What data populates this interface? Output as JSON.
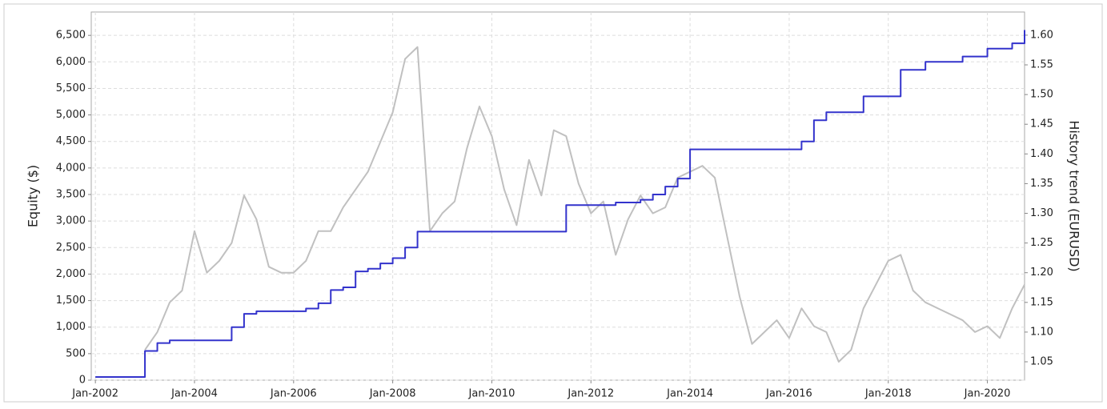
{
  "chart_data": {
    "type": "line",
    "x": [
      "2002-01",
      "2002-04",
      "2002-07",
      "2002-10",
      "2003-01",
      "2003-04",
      "2003-07",
      "2003-10",
      "2004-01",
      "2004-04",
      "2004-07",
      "2004-10",
      "2005-01",
      "2005-04",
      "2005-07",
      "2005-10",
      "2006-01",
      "2006-04",
      "2006-07",
      "2006-10",
      "2007-01",
      "2007-04",
      "2007-07",
      "2007-10",
      "2008-01",
      "2008-04",
      "2008-07",
      "2008-10",
      "2009-01",
      "2009-04",
      "2009-07",
      "2009-10",
      "2010-01",
      "2010-04",
      "2010-07",
      "2010-10",
      "2011-01",
      "2011-04",
      "2011-07",
      "2011-10",
      "2012-01",
      "2012-04",
      "2012-07",
      "2012-10",
      "2013-01",
      "2013-04",
      "2013-07",
      "2013-10",
      "2014-01",
      "2014-04",
      "2014-07",
      "2014-10",
      "2015-01",
      "2015-04",
      "2015-07",
      "2015-10",
      "2016-01",
      "2016-04",
      "2016-07",
      "2016-10",
      "2017-01",
      "2017-04",
      "2017-07",
      "2017-10",
      "2018-01",
      "2018-04",
      "2018-07",
      "2018-10",
      "2019-01",
      "2019-04",
      "2019-07",
      "2019-10",
      "2020-01",
      "2020-04",
      "2020-07",
      "2020-10"
    ],
    "series": [
      {
        "name": "History trend (EURUSD)",
        "color": "#c0c0c0",
        "axis": "y2",
        "step": false,
        "values": [
          null,
          null,
          null,
          null,
          1.07,
          1.1,
          1.15,
          1.17,
          1.27,
          1.2,
          1.22,
          1.25,
          1.33,
          1.29,
          1.21,
          1.2,
          1.2,
          1.22,
          1.27,
          1.27,
          1.31,
          1.34,
          1.37,
          1.42,
          1.47,
          1.56,
          1.58,
          1.27,
          1.3,
          1.32,
          1.41,
          1.48,
          1.43,
          1.34,
          1.28,
          1.39,
          1.33,
          1.44,
          1.43,
          1.35,
          1.3,
          1.32,
          1.23,
          1.29,
          1.33,
          1.3,
          1.31,
          1.36,
          1.37,
          1.38,
          1.36,
          1.26,
          1.16,
          1.08,
          1.1,
          1.12,
          1.09,
          1.14,
          1.11,
          1.1,
          1.05,
          1.07,
          1.14,
          1.18,
          1.22,
          1.23,
          1.17,
          1.15,
          1.14,
          1.13,
          1.12,
          1.1,
          1.11,
          1.09,
          1.14,
          1.18
        ]
      },
      {
        "name": "Equity ($)",
        "color": "#3333cc",
        "axis": "y",
        "step": true,
        "values": [
          60,
          60,
          60,
          60,
          550,
          700,
          750,
          750,
          750,
          750,
          750,
          1000,
          1250,
          1300,
          1300,
          1300,
          1300,
          1350,
          1450,
          1700,
          1750,
          2050,
          2100,
          2200,
          2300,
          2500,
          2800,
          2800,
          2800,
          2800,
          2800,
          2800,
          2800,
          2800,
          2800,
          2800,
          2800,
          2800,
          3300,
          3300,
          3300,
          3300,
          3350,
          3350,
          3400,
          3500,
          3650,
          3800,
          4350,
          4350,
          4350,
          4350,
          4350,
          4350,
          4350,
          4350,
          4350,
          4500,
          4900,
          5050,
          5050,
          5050,
          5350,
          5350,
          5350,
          5850,
          5850,
          6000,
          6000,
          6000,
          6100,
          6100,
          6250,
          6250,
          6350,
          6600
        ]
      }
    ],
    "y_label": "Equity ($)",
    "y2_label": "History trend (EURUSD)",
    "xlim": [
      "2001-12",
      "2020-10"
    ],
    "xticks": [
      {
        "value": "2002-01",
        "label": "Jan-2002"
      },
      {
        "value": "2004-01",
        "label": "Jan-2004"
      },
      {
        "value": "2006-01",
        "label": "Jan-2006"
      },
      {
        "value": "2008-01",
        "label": "Jan-2008"
      },
      {
        "value": "2010-01",
        "label": "Jan-2010"
      },
      {
        "value": "2012-01",
        "label": "Jan-2012"
      },
      {
        "value": "2014-01",
        "label": "Jan-2014"
      },
      {
        "value": "2016-01",
        "label": "Jan-2016"
      },
      {
        "value": "2018-01",
        "label": "Jan-2018"
      },
      {
        "value": "2020-01",
        "label": "Jan-2020"
      }
    ],
    "ylim": [
      0,
      6940
    ],
    "yticks": [
      0,
      500,
      {
        "value": 1000,
        "label": "1,000"
      },
      {
        "value": 1500,
        "label": "1,500"
      },
      {
        "value": 2000,
        "label": "2,000"
      },
      {
        "value": 2500,
        "label": "2,500"
      },
      {
        "value": 3000,
        "label": "3,000"
      },
      {
        "value": 3500,
        "label": "3,500"
      },
      {
        "value": 4000,
        "label": "4,000"
      },
      {
        "value": 4500,
        "label": "4,500"
      },
      {
        "value": 5000,
        "label": "5,000"
      },
      {
        "value": 5500,
        "label": "5,500"
      },
      {
        "value": 6000,
        "label": "6,000"
      },
      {
        "value": 6500,
        "label": "6,500"
      }
    ],
    "y2lim": [
      1.019,
      1.639
    ],
    "y2ticks": [
      1.05,
      {
        "value": 1.1,
        "label": "1.10"
      },
      1.15,
      {
        "value": 1.2,
        "label": "1.20"
      },
      1.25,
      {
        "value": 1.3,
        "label": "1.30"
      },
      1.35,
      {
        "value": 1.4,
        "label": "1.40"
      },
      1.45,
      {
        "value": 1.5,
        "label": "1.50"
      },
      1.55,
      {
        "value": 1.6,
        "label": "1.60"
      }
    ],
    "grid": true
  }
}
